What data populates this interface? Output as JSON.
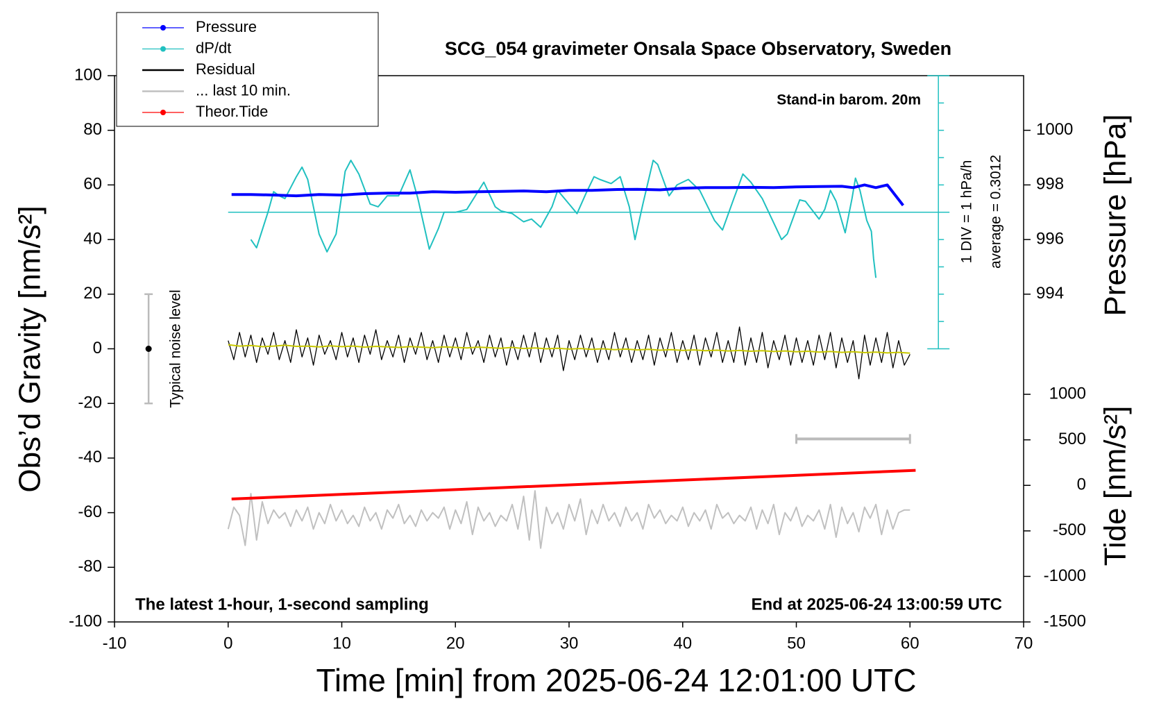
{
  "chart_data": {
    "type": "line",
    "title": "SCG_054 gravimeter Onsala Space Observatory, Sweden",
    "xlabel": "Time [min] from 2025-06-24 12:01:00 UTC",
    "ylabel": "Obs’d Gravity [nm/s²]",
    "y2label": "Pressure [hPa]",
    "y3label": "Tide [nm/s²]",
    "annotations": [
      "Stand-in barom. 20m",
      "1 DIV = 1 hPa/h",
      "average = 0.3012",
      "The latest 1-hour, 1-second sampling",
      "End at 2025-06-24 13:00:59 UTC"
    ],
    "xlim": [
      -10,
      70
    ],
    "xticks": [
      -10,
      0,
      10,
      20,
      30,
      40,
      50,
      60,
      70
    ],
    "ylim": [
      -100,
      100
    ],
    "yticks": [
      -100,
      -80,
      -60,
      -40,
      -20,
      0,
      20,
      40,
      60,
      80,
      100
    ],
    "y2lim": [
      982,
      1002
    ],
    "y2ticks": [
      994,
      996,
      998,
      1000
    ],
    "y3lim": [
      -1500,
      4500
    ],
    "y3ticks": [
      -1500,
      -1000,
      -500,
      0,
      500,
      1000
    ],
    "dpdt_axis": {
      "x": 62.5,
      "ticks": [
        0,
        10,
        20,
        30,
        40,
        50,
        60,
        70,
        80,
        90,
        100
      ]
    },
    "average_line": 50,
    "noise_bar": {
      "x": -7,
      "range": [
        -20,
        20
      ],
      "center": 0,
      "label": "Typical noise level"
    },
    "last10_bar": {
      "x": [
        50,
        60
      ],
      "y": -33
    },
    "series": [
      {
        "name": "Pressure",
        "color": "#0000ff",
        "axis": "y2",
        "marker": true,
        "line_width": 4,
        "x": [
          0.3,
          2,
          4,
          6,
          8,
          10,
          12,
          14,
          16,
          18,
          20,
          22,
          24,
          26,
          28,
          30,
          32,
          34,
          36,
          38,
          40,
          42,
          44,
          46,
          48,
          50,
          52,
          54,
          55,
          56,
          57,
          58,
          59.4
        ],
        "values": [
          997.65,
          997.65,
          997.63,
          997.6,
          997.65,
          997.63,
          997.68,
          997.7,
          997.7,
          997.75,
          997.73,
          997.75,
          997.76,
          997.78,
          997.75,
          997.8,
          997.8,
          997.83,
          997.84,
          997.82,
          997.88,
          997.9,
          997.9,
          997.91,
          997.9,
          997.93,
          997.94,
          997.95,
          997.9,
          998.0,
          997.9,
          998.0,
          997.25
        ]
      },
      {
        "name": "dP/dt",
        "color": "#20c0c0",
        "marker": true,
        "line_width": 2,
        "x": [
          2,
          2.5,
          3.5,
          4,
          4.5,
          5,
          6,
          6.5,
          7,
          8,
          8.7,
          9.5,
          10.3,
          10.8,
          11.5,
          12.5,
          13.2,
          14,
          15,
          16,
          16.7,
          17.7,
          18.5,
          19,
          20,
          21,
          22.5,
          23.5,
          24,
          25,
          26,
          26.7,
          27.5,
          28.5,
          29,
          30,
          30.7,
          31.5,
          32.2,
          32.7,
          33.7,
          34.5,
          35.3,
          35.8,
          36.5,
          37.4,
          37.8,
          38.8,
          39.5,
          40.5,
          41.5,
          42.8,
          43.5,
          44.5,
          45.3,
          46,
          47,
          48.7,
          49.2,
          50.3,
          50.8,
          52,
          52.5,
          53,
          53.5,
          54.3,
          54.9,
          55.2,
          55.6,
          56.2,
          56.6,
          56.8,
          57
        ],
        "values": [
          40,
          37,
          50,
          57.5,
          56,
          55,
          63,
          66.5,
          62,
          42,
          35.5,
          42,
          65,
          69,
          64,
          53,
          52,
          56,
          56,
          65.5,
          55,
          36.5,
          44,
          50,
          50,
          51,
          61,
          52,
          50.5,
          49.5,
          46.5,
          47.5,
          44.5,
          52,
          58,
          53,
          49.5,
          57,
          63,
          62,
          60.5,
          63,
          52,
          40,
          53,
          69,
          67.5,
          56,
          60,
          62,
          58,
          47,
          43.5,
          55,
          64,
          61,
          55,
          40,
          42,
          54.5,
          54,
          47.5,
          51,
          58,
          54,
          42.5,
          55,
          62.5,
          58,
          47,
          43,
          33,
          26
        ]
      },
      {
        "name": "Residual",
        "color": "#000000",
        "line_width": 1.3,
        "x": [
          0,
          0.5,
          1,
          1.5,
          2,
          2.5,
          3,
          3.5,
          4,
          4.5,
          5,
          5.5,
          6,
          6.5,
          7,
          7.5,
          8,
          8.5,
          9,
          9.5,
          10,
          10.5,
          11,
          11.5,
          12,
          12.5,
          13,
          13.5,
          14,
          14.5,
          15,
          15.5,
          16,
          16.5,
          17,
          17.5,
          18,
          18.5,
          19,
          19.5,
          20,
          20.5,
          21,
          21.5,
          22,
          22.5,
          23,
          23.5,
          24,
          24.5,
          25,
          25.5,
          26,
          26.5,
          27,
          27.5,
          28,
          28.5,
          29,
          29.5,
          30,
          30.5,
          31,
          31.5,
          32,
          32.5,
          33,
          33.5,
          34,
          34.5,
          35,
          35.5,
          36,
          36.5,
          37,
          37.5,
          38,
          38.5,
          39,
          39.5,
          40,
          40.5,
          41,
          41.5,
          42,
          42.5,
          43,
          43.5,
          44,
          44.5,
          45,
          45.5,
          46,
          46.5,
          47,
          47.5,
          48,
          48.5,
          49,
          49.5,
          50,
          50.5,
          51,
          51.5,
          52,
          52.5,
          53,
          53.5,
          54,
          54.5,
          55,
          55.5,
          56,
          56.5,
          57,
          57.5,
          58,
          58.5,
          59,
          59.5,
          60
        ],
        "values": [
          3,
          -4,
          6,
          -3,
          5,
          -5,
          4,
          -2,
          6,
          -4,
          3,
          -5,
          7,
          -3,
          4,
          -6,
          5,
          -2,
          3,
          -4,
          6,
          -3,
          4,
          -5,
          5,
          -2,
          7,
          -4,
          3,
          -3,
          5,
          -5,
          4,
          -2,
          6,
          -4,
          3,
          -5,
          5,
          -3,
          4,
          -4,
          6,
          -2,
          3,
          -5,
          5,
          -3,
          4,
          -6,
          3,
          -4,
          5,
          -3,
          6,
          -5,
          4,
          -3,
          5,
          -8,
          3,
          -4,
          5,
          -3,
          4,
          -5,
          3,
          -4,
          6,
          -3,
          4,
          -5,
          3,
          -4,
          5,
          -6,
          4,
          -3,
          6,
          -5,
          3,
          -4,
          5,
          -6,
          4,
          -3,
          6,
          -5,
          3,
          -5,
          8,
          -6,
          4,
          -5,
          6,
          -7,
          3,
          -4,
          5,
          -6,
          4,
          -5,
          3,
          -6,
          5,
          -4,
          6,
          -7,
          4,
          -5,
          3,
          -11,
          5,
          -6,
          4,
          -5,
          6,
          -7,
          3,
          -6,
          -2
        ]
      },
      {
        "color": "#c8c800",
        "line_width": 2,
        "x": [
          0,
          1,
          2,
          3,
          4,
          5,
          6,
          7,
          8,
          9,
          10,
          11,
          12,
          13,
          14,
          15,
          16,
          17,
          18,
          19,
          20,
          21,
          22,
          23,
          24,
          25,
          26,
          27,
          28,
          29,
          30,
          31,
          32,
          33,
          34,
          35,
          36,
          37,
          38,
          39,
          40,
          41,
          42,
          43,
          44,
          45,
          46,
          47,
          48,
          49,
          50,
          51,
          52,
          53,
          54,
          55,
          56,
          57,
          58,
          59,
          60
        ],
        "values": [
          1.5,
          1,
          1.2,
          0.8,
          1,
          1.3,
          0.9,
          1,
          0.7,
          1.1,
          0.8,
          1,
          0.6,
          0.9,
          0.7,
          0.5,
          0.8,
          0.6,
          0.4,
          0.7,
          0.5,
          0.3,
          0.6,
          0.4,
          0.2,
          0.5,
          0.1,
          0.3,
          0,
          0.2,
          -0.1,
          0.1,
          -0.2,
          0,
          -0.3,
          -0.1,
          -0.4,
          -0.2,
          -0.5,
          -0.3,
          -0.6,
          -0.4,
          -0.7,
          -0.5,
          -0.8,
          -0.6,
          -0.9,
          -0.7,
          -1,
          -0.8,
          -1.1,
          -0.9,
          -1.2,
          -1,
          -1.3,
          -1.1,
          -1.4,
          -1.2,
          -1.5,
          -1.3,
          -1.6
        ]
      },
      {
        "name": "... last 10 min.",
        "color": "#c0c0c0",
        "line_width": 2,
        "x": [
          0,
          0.5,
          1,
          1.5,
          2,
          2.5,
          3,
          3.5,
          4,
          4.5,
          5,
          5.5,
          6,
          6.5,
          7,
          7.5,
          8,
          8.5,
          9,
          9.5,
          10,
          10.5,
          11,
          11.5,
          12,
          12.5,
          13,
          13.5,
          14,
          14.5,
          15,
          15.5,
          16,
          16.5,
          17,
          17.5,
          18,
          18.5,
          19,
          19.5,
          20,
          20.5,
          21,
          21.5,
          22,
          22.5,
          23,
          23.5,
          24,
          24.5,
          25,
          25.5,
          26,
          26.5,
          27,
          27.5,
          28,
          28.5,
          29,
          29.5,
          30,
          30.5,
          31,
          31.5,
          32,
          32.5,
          33,
          33.5,
          34,
          34.5,
          35,
          35.5,
          36,
          36.5,
          37,
          37.5,
          38,
          38.5,
          39,
          39.5,
          40,
          40.5,
          41,
          41.5,
          42,
          42.5,
          43,
          43.5,
          44,
          44.5,
          45,
          45.5,
          46,
          46.5,
          47,
          47.5,
          48,
          48.5,
          49,
          49.5,
          50,
          50.5,
          51,
          51.5,
          52,
          52.5,
          53,
          53.5,
          54,
          54.5,
          55,
          55.5,
          56,
          56.5,
          57,
          57.5,
          58,
          58.5,
          59,
          59.5,
          60
        ],
        "values": [
          -66,
          -58,
          -61,
          -72,
          -53,
          -70,
          -56,
          -64,
          -59,
          -62,
          -60,
          -65,
          -59,
          -63,
          -58,
          -66,
          -60,
          -64,
          -57,
          -63,
          -59,
          -64,
          -61,
          -65,
          -58,
          -63,
          -60,
          -66,
          -59,
          -62,
          -57,
          -64,
          -61,
          -65,
          -59,
          -63,
          -60,
          -62,
          -58,
          -66,
          -59,
          -64,
          -56,
          -68,
          -58,
          -63,
          -60,
          -65,
          -61,
          -63,
          -57,
          -66,
          -54,
          -70,
          -52,
          -73,
          -58,
          -64,
          -60,
          -66,
          -57,
          -63,
          -55,
          -68,
          -59,
          -64,
          -57,
          -63,
          -60,
          -65,
          -58,
          -63,
          -60,
          -66,
          -57,
          -62,
          -59,
          -64,
          -61,
          -63,
          -58,
          -65,
          -60,
          -63,
          -59,
          -66,
          -57,
          -62,
          -60,
          -64,
          -61,
          -63,
          -58,
          -66,
          -59,
          -64,
          -57,
          -68,
          -60,
          -63,
          -58,
          -65,
          -61,
          -63,
          -59,
          -66,
          -57,
          -69,
          -58,
          -64,
          -60,
          -67,
          -58,
          -62,
          -57,
          -68,
          -59,
          -66,
          -60,
          -59,
          -59
        ]
      },
      {
        "name": "Theor.Tide",
        "color": "#ff0000",
        "axis": "y3",
        "marker": true,
        "line_width": 4,
        "x": [
          0.3,
          60.5
        ],
        "values": [
          -150,
          165
        ]
      }
    ]
  }
}
